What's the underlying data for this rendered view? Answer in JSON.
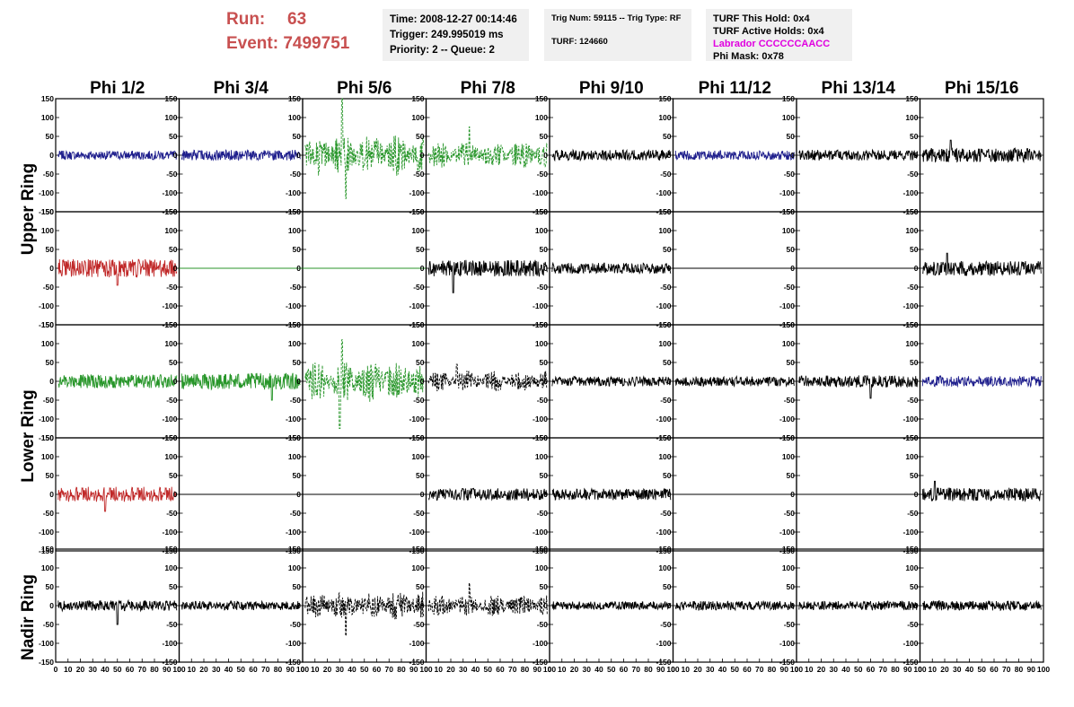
{
  "header": {
    "run_label": "Run:",
    "run_value": "63",
    "event_label": "Event:",
    "event_value": "7499751",
    "time_line": "Time: 2008-12-27 00:14:46",
    "trigger_line": "Trigger: 249.995019 ms",
    "priority_line": "Priority: 2 -- Queue: 2",
    "trig_line": "Trig Num: 59115 -- Trig Type: RF",
    "turf_line": "TURF: 124660",
    "turf_hold_line": "TURF This Hold: 0x4",
    "turf_active_line": "TURF Active Holds: 0x4",
    "labrador_line": "Labrador CCCCCCAACC",
    "phi_mask_line": "Phi Mask: 0x78"
  },
  "colors": {
    "header_text": "#c85050",
    "labrador_text": "#e000e0",
    "blue": "#1e1e8c",
    "red": "#c02828",
    "green": "#28962a",
    "black": "#000000"
  },
  "ring_labels": [
    "Upper Ring",
    "Lower Ring",
    "Nadir Ring"
  ],
  "chart_data": {
    "type": "line",
    "columns": [
      "Phi 1/2",
      "Phi 3/4",
      "Phi 5/6",
      "Phi 7/8",
      "Phi 9/10",
      "Phi 11/12",
      "Phi 13/14",
      "Phi 15/16"
    ],
    "xlim": [
      0,
      100
    ],
    "ylim": [
      -150,
      150
    ],
    "x_ticks": [
      "0",
      "10",
      "20",
      "30",
      "40",
      "50",
      "60",
      "70",
      "80",
      "90",
      "100"
    ],
    "y_ticks": [
      "150",
      "100",
      "50",
      "0",
      "-50",
      "-100",
      "-150"
    ],
    "panels": [
      [
        {
          "color": "blue",
          "style": "solid",
          "amp": 12,
          "spikes": [],
          "flat": false
        },
        {
          "color": "blue",
          "style": "solid",
          "amp": 14,
          "spikes": [],
          "flat": false
        },
        {
          "color": "green",
          "style": "dashed",
          "amp": 55,
          "spikes": [
            [
              32,
              150
            ],
            [
              35,
              -115
            ]
          ],
          "flat": false
        },
        {
          "color": "green",
          "style": "dashed",
          "amp": 35,
          "spikes": [
            [
              35,
              75
            ]
          ],
          "flat": false
        },
        {
          "color": "black",
          "style": "solid",
          "amp": 14,
          "spikes": [],
          "flat": false
        },
        {
          "color": "blue",
          "style": "solid",
          "amp": 12,
          "spikes": [],
          "flat": false
        },
        {
          "color": "black",
          "style": "solid",
          "amp": 14,
          "spikes": [],
          "flat": false
        },
        {
          "color": "black",
          "style": "solid",
          "amp": 18,
          "spikes": [
            [
              25,
              40
            ]
          ],
          "flat": false
        }
      ],
      [
        {
          "color": "red",
          "style": "solid",
          "amp": 24,
          "spikes": [
            [
              50,
              -45
            ]
          ],
          "flat": false
        },
        {
          "color": "green",
          "style": "solid",
          "amp": 0,
          "spikes": [],
          "flat": true
        },
        {
          "color": "green",
          "style": "solid",
          "amp": 0,
          "spikes": [],
          "flat": true
        },
        {
          "color": "black",
          "style": "solid",
          "amp": 22,
          "spikes": [
            [
              22,
              -65
            ]
          ],
          "flat": false
        },
        {
          "color": "black",
          "style": "solid",
          "amp": 14,
          "spikes": [],
          "flat": false
        },
        {
          "color": "black",
          "style": "solid",
          "amp": 0,
          "spikes": [],
          "flat": true
        },
        {
          "color": "black",
          "style": "solid",
          "amp": 0,
          "spikes": [],
          "flat": true
        },
        {
          "color": "black",
          "style": "solid",
          "amp": 20,
          "spikes": [
            [
              22,
              40
            ]
          ],
          "flat": false
        }
      ],
      [
        {
          "color": "green",
          "style": "solid",
          "amp": 18,
          "spikes": [],
          "flat": false
        },
        {
          "color": "green",
          "style": "solid",
          "amp": 22,
          "spikes": [
            [
              75,
              -50
            ]
          ],
          "flat": false
        },
        {
          "color": "green",
          "style": "dashed",
          "amp": 55,
          "spikes": [
            [
              32,
              110
            ],
            [
              30,
              -125
            ]
          ],
          "flat": false
        },
        {
          "color": "black",
          "style": "dashed",
          "amp": 28,
          "spikes": [
            [
              25,
              45
            ]
          ],
          "flat": false
        },
        {
          "color": "black",
          "style": "solid",
          "amp": 13,
          "spikes": [],
          "flat": false
        },
        {
          "color": "black",
          "style": "solid",
          "amp": 13,
          "spikes": [],
          "flat": false
        },
        {
          "color": "black",
          "style": "solid",
          "amp": 16,
          "spikes": [
            [
              60,
              -45
            ]
          ],
          "flat": false
        },
        {
          "color": "blue",
          "style": "solid",
          "amp": 14,
          "spikes": [],
          "flat": false
        }
      ],
      [
        {
          "color": "red",
          "style": "solid",
          "amp": 20,
          "spikes": [
            [
              40,
              -45
            ]
          ],
          "flat": false
        },
        {
          "color": "black",
          "style": "solid",
          "amp": 0,
          "spikes": [],
          "flat": true
        },
        {
          "color": "black",
          "style": "solid",
          "amp": 0,
          "spikes": [],
          "flat": true
        },
        {
          "color": "black",
          "style": "solid",
          "amp": 16,
          "spikes": [],
          "flat": false
        },
        {
          "color": "black",
          "style": "solid",
          "amp": 15,
          "spikes": [],
          "flat": false
        },
        {
          "color": "black",
          "style": "solid",
          "amp": 0,
          "spikes": [],
          "flat": true
        },
        {
          "color": "black",
          "style": "solid",
          "amp": 0,
          "spikes": [],
          "flat": true
        },
        {
          "color": "black",
          "style": "solid",
          "amp": 18,
          "spikes": [
            [
              12,
              35
            ]
          ],
          "flat": false
        }
      ],
      [
        {
          "color": "black",
          "style": "solid",
          "amp": 14,
          "spikes": [
            [
              50,
              -50
            ]
          ],
          "flat": false
        },
        {
          "color": "black",
          "style": "solid",
          "amp": 12,
          "spikes": [],
          "flat": false
        },
        {
          "color": "black",
          "style": "dashed",
          "amp": 38,
          "spikes": [
            [
              35,
              -80
            ]
          ],
          "flat": false
        },
        {
          "color": "black",
          "style": "dashed",
          "amp": 28,
          "spikes": [
            [
              35,
              60
            ]
          ],
          "flat": false
        },
        {
          "color": "black",
          "style": "solid",
          "amp": 11,
          "spikes": [],
          "flat": false
        },
        {
          "color": "black",
          "style": "solid",
          "amp": 12,
          "spikes": [],
          "flat": false
        },
        {
          "color": "black",
          "style": "solid",
          "amp": 12,
          "spikes": [],
          "flat": false
        },
        {
          "color": "black",
          "style": "solid",
          "amp": 13,
          "spikes": [],
          "flat": false
        }
      ]
    ]
  }
}
